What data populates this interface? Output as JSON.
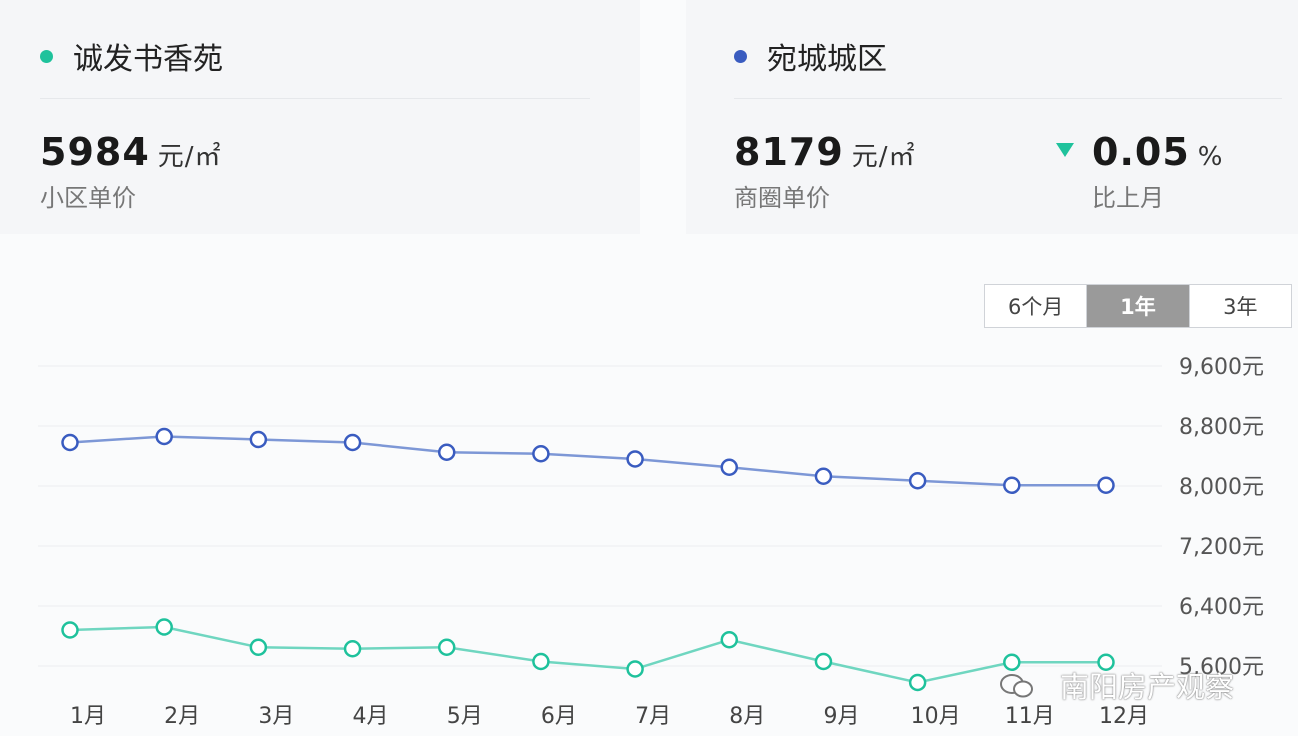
{
  "community": {
    "name": "诚发书香苑",
    "dot_color": "#1fc29c",
    "price": "5984",
    "unit": "元/㎡",
    "label": "小区单价"
  },
  "district": {
    "name": "宛城城区",
    "dot_color": "#3a5cc0",
    "price": "8179",
    "unit": "元/㎡",
    "label": "商圈单价",
    "change_value": "0.05",
    "change_unit": "%",
    "change_label": "比上月",
    "change_icon": "triangle-down-icon"
  },
  "range_tabs": [
    {
      "label": "6个月",
      "active": false
    },
    {
      "label": "1年",
      "active": true
    },
    {
      "label": "3年",
      "active": false
    }
  ],
  "watermark": "南阳房产观察",
  "chart_data": {
    "type": "line",
    "categories": [
      "1月",
      "2月",
      "3月",
      "4月",
      "5月",
      "6月",
      "7月",
      "8月",
      "9月",
      "10月",
      "11月",
      "12月"
    ],
    "series": [
      {
        "color": "#3a5cc0",
        "values": [
          8580,
          8660,
          8620,
          8580,
          8450,
          8430,
          8360,
          8250,
          8130,
          8070,
          8010,
          8010
        ]
      },
      {
        "color": "#1fc29c",
        "values": [
          6080,
          6120,
          5850,
          5830,
          5850,
          5660,
          5560,
          5950,
          5660,
          5380,
          5650,
          5650
        ]
      }
    ],
    "y_ticks": [
      "9,600元",
      "8,800元",
      "8,000元",
      "7,200元",
      "6,400元",
      "5,600元"
    ],
    "y_tick_values": [
      9600,
      8800,
      8000,
      7200,
      6400,
      5600
    ],
    "ylim": [
      5600,
      9600
    ],
    "grid": true,
    "legend": "top"
  }
}
